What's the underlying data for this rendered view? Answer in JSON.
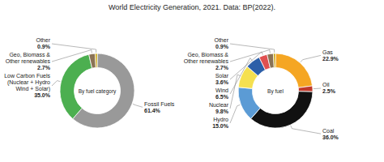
{
  "chart_data": [
    {
      "type": "donut",
      "title": "World Electricity Generation, 2021. Data: BP(2022).",
      "subtitle": "By fuel category",
      "categories": [
        "Fossil Fuels",
        "Low Carbon Fuels\n(Nuclear + Hydro\nWind + Solar)",
        "Geo, Biomass &\nOther renewables",
        "Other"
      ],
      "values": [
        61.4,
        35.0,
        2.7,
        0.9
      ],
      "value_labels": [
        "61.4%",
        "35.0%",
        "2.7%",
        "0.9%"
      ],
      "colors": [
        "#999999",
        "#4caf50",
        "#8B7355",
        "#c8a000"
      ],
      "data_labels": true
    },
    {
      "type": "donut",
      "subtitle": "By fuel",
      "categories": [
        "Gas",
        "Oil",
        "Coal",
        "Hydro",
        "Nuclear",
        "Wind",
        "Solar",
        "Geo, Biomass &\nOther renewables",
        "Other"
      ],
      "values": [
        22.9,
        2.5,
        36.0,
        15.0,
        9.8,
        6.5,
        3.6,
        2.7,
        0.9
      ],
      "value_labels": [
        "22.9%",
        "2.5%",
        "36.0%",
        "15.0%",
        "9.8%",
        "6.5%",
        "3.6%",
        "2.7%",
        "0.9%"
      ],
      "colors": [
        "#f5a623",
        "#c0392b",
        "#111111",
        "#5b9bd5",
        "#f5e050",
        "#2c5fa8",
        "#e05050",
        "#8B7355",
        "#c8a000"
      ],
      "data_labels": true
    }
  ]
}
